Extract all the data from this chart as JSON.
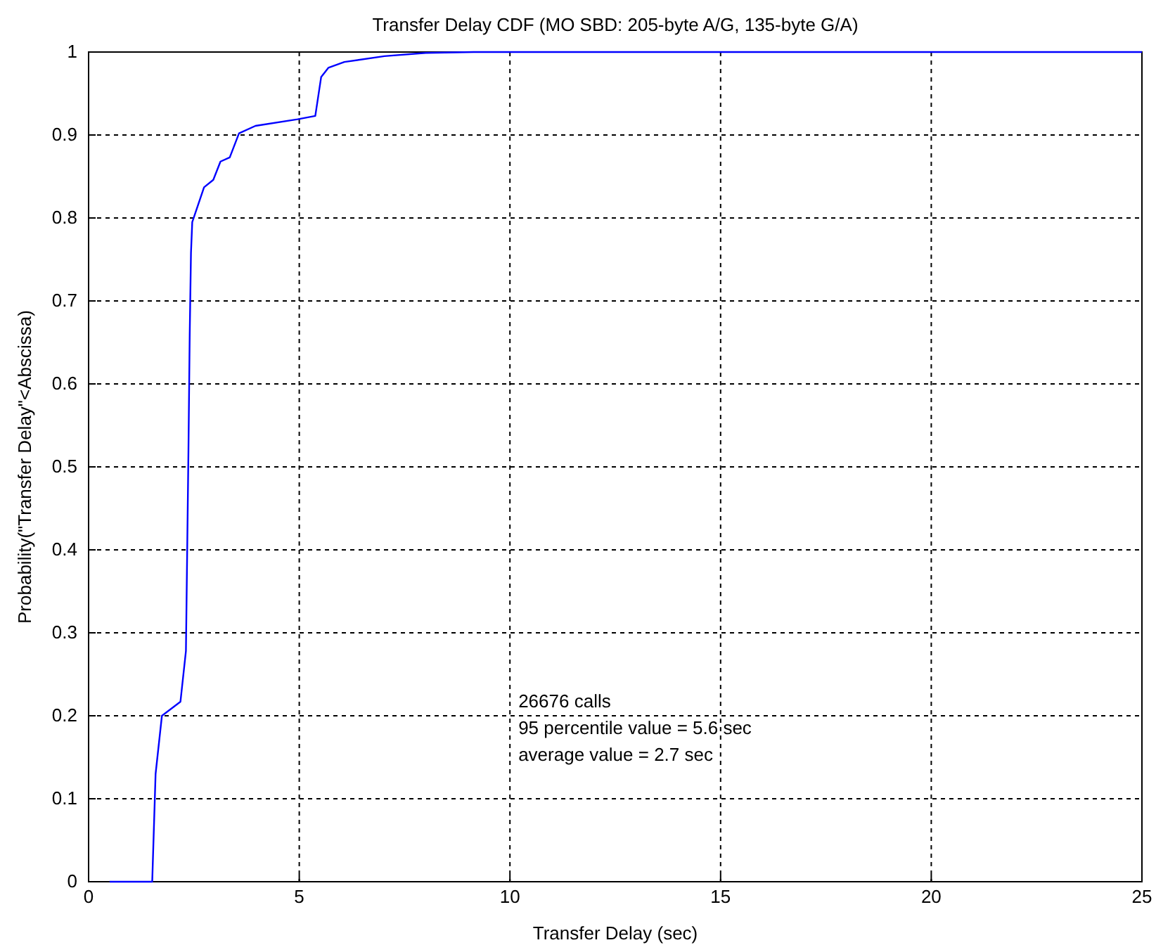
{
  "chart_data": {
    "type": "line",
    "title": "Transfer Delay CDF (MO SBD: 205-byte A/G, 135-byte G/A)",
    "xlabel": "Transfer Delay (sec)",
    "ylabel": "Probability(\"Transfer Delay\"<Abscissa)",
    "xlim": [
      0,
      25
    ],
    "xticks": [
      0,
      5,
      10,
      15,
      20,
      25
    ],
    "ylim": [
      0,
      1
    ],
    "yticks": [
      0,
      0.1,
      0.2,
      0.3,
      0.4,
      0.5,
      0.6,
      0.7,
      0.8,
      0.9,
      1
    ],
    "grid": true,
    "marker": "none",
    "line_style": "solid",
    "annotations": [
      "26676 calls",
      "95 percentile value = 5.6 sec",
      "average value = 2.7 sec"
    ],
    "series": [
      {
        "color": "#0000ff",
        "x": [
          0.5,
          1.51,
          1.59,
          1.74,
          2.18,
          2.31,
          2.37,
          2.4,
          2.43,
          2.46,
          2.74,
          2.96,
          3.13,
          3.35,
          3.57,
          3.96,
          4.96,
          5.38,
          5.52,
          5.69,
          6.07,
          7.02,
          8.0,
          9.14,
          25
        ],
        "values": [
          0,
          0,
          0.13,
          0.2,
          0.217,
          0.278,
          0.52,
          0.66,
          0.758,
          0.795,
          0.837,
          0.846,
          0.868,
          0.873,
          0.902,
          0.911,
          0.919,
          0.923,
          0.97,
          0.981,
          0.988,
          0.995,
          0.999,
          1,
          1
        ]
      }
    ]
  }
}
